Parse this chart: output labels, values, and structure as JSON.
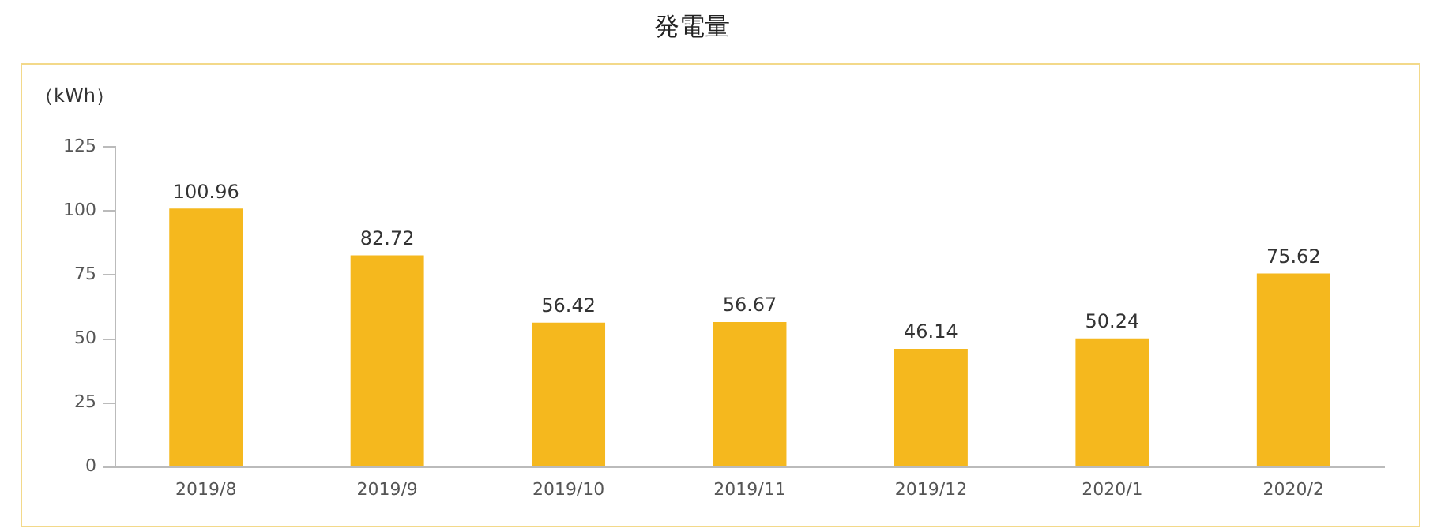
{
  "chart_data": {
    "type": "bar",
    "title": "発電量",
    "ylabel": "（kWh）",
    "categories": [
      "2019/8",
      "2019/9",
      "2019/10",
      "2019/11",
      "2019/12",
      "2020/1",
      "2020/2"
    ],
    "values": [
      100.96,
      82.72,
      56.42,
      56.67,
      46.14,
      50.24,
      75.62
    ],
    "color": "#f5b81e",
    "ylim": [
      0,
      125
    ],
    "yticks": [
      0,
      25,
      50,
      75,
      100,
      125
    ],
    "grid": false,
    "legend": false,
    "data_labels": true
  }
}
